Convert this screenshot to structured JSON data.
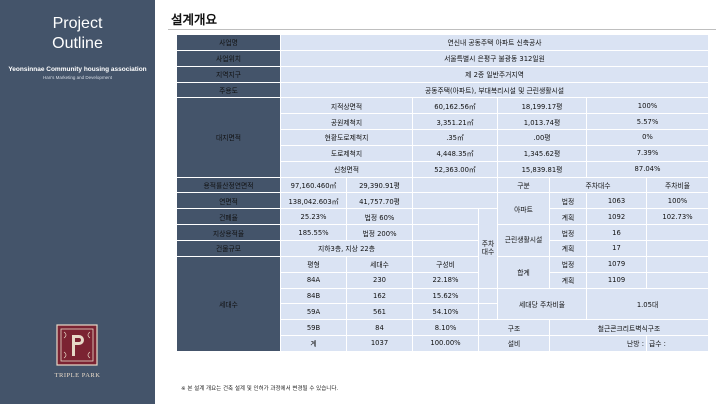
{
  "sidebar": {
    "title_line1": "Project",
    "title_line2": "Outline",
    "association": "Yeonsinnae Community housing association",
    "subtitle": "Han's Marketing and Development",
    "logo_text": "TRIPLE PARK",
    "logo_icon": "triple-park-monogram-icon"
  },
  "page": {
    "title": "설계개요",
    "footnote": "※ 본 설계 개요는 건축 설계 및 인허가 과정에서 변경될 수 있습니다."
  },
  "colors": {
    "header": "#44546a",
    "cell": "#dae3f3",
    "sidebar": "#44546a"
  },
  "labels": {
    "project_name": "사업명",
    "location": "사업위치",
    "district": "지역지구",
    "use": "주용도",
    "site_area": "대지면적",
    "floor_area_far": "용적률산정연면적",
    "total_floor_area": "연면적",
    "coverage": "건폐율",
    "far": "지상용적율",
    "scale": "건물규모",
    "households": "세대수",
    "parking": "주차대수"
  },
  "info": {
    "project_name": "연신내 공동주택 아파트 신축공사",
    "location": "서울특별시 은평구 불광동 312일원",
    "district": "제 2종 일반주거지역",
    "use": "공동주택(아파트), 부대복리시설 및 근린생활시설"
  },
  "site": [
    {
      "label": "지적상면적",
      "sqm": "60,162.56㎡",
      "pyeong": "18,199.17평",
      "ratio": "100%"
    },
    {
      "label": "공원제척지",
      "sqm": "3,351.21㎡",
      "pyeong": "1,013.74평",
      "ratio": "5.57%"
    },
    {
      "label": "현황도로제척지",
      "sqm": ".35㎡",
      "pyeong": ".00평",
      "ratio": "0%"
    },
    {
      "label": "도로제척지",
      "sqm": "4,448.35㎡",
      "pyeong": "1,345.62평",
      "ratio": "7.39%"
    },
    {
      "label": "신청면적",
      "sqm": "52,363.00㎡",
      "pyeong": "15,839.81평",
      "ratio": "87.04%"
    }
  ],
  "area": {
    "far_area_sqm": "97,160.460㎡",
    "far_area_pyeong": "29,390.91평",
    "total_sqm": "138,042.603㎡",
    "total_pyeong": "41,757.70평",
    "coverage": "25.23%",
    "coverage_legal": "법정 60%",
    "far": "185.55%",
    "far_legal": "법정 200%",
    "scale": "지하3층, 지상 22층"
  },
  "parking": {
    "header_type": "구분",
    "header_count": "주차대수",
    "header_ratio": "주차비율",
    "apt_label": "아파트",
    "apt_legal_label": "법정",
    "apt_legal": "1063",
    "apt_legal_ratio": "100%",
    "apt_plan_label": "계획",
    "apt_plan": "1092",
    "apt_plan_ratio": "102.73%",
    "retail_label": "근린생활시설",
    "retail_legal_label": "법정",
    "retail_legal": "16",
    "retail_plan_label": "계획",
    "retail_plan": "17",
    "total_label": "합계",
    "total_legal_label": "법정",
    "total_legal": "1079",
    "total_plan_label": "계획",
    "total_plan": "1109",
    "per_unit_label": "세대당 주차비율",
    "per_unit": "1.05대"
  },
  "units": {
    "headers": {
      "type": "평형",
      "count": "세대수",
      "ratio": "구성비"
    },
    "rows": [
      {
        "type": "84A",
        "count": "230",
        "ratio": "22.18%"
      },
      {
        "type": "84B",
        "count": "162",
        "ratio": "15.62%"
      },
      {
        "type": "59A",
        "count": "561",
        "ratio": "54.10%"
      },
      {
        "type": "59B",
        "count": "84",
        "ratio": "8.10%"
      }
    ],
    "total_label": "계",
    "total_count": "1037",
    "total_ratio": "100.00%"
  },
  "structure": {
    "label": "구조",
    "value": "철근콘크리트벽식구조",
    "equip_label": "설비",
    "heating_label": "난방 :",
    "water_label": "급수 :"
  }
}
